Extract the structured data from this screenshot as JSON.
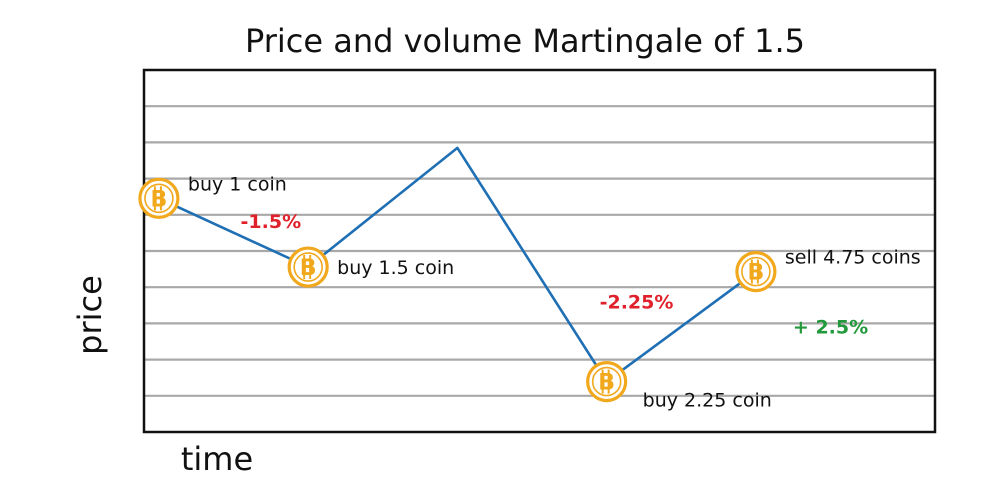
{
  "chart_data": {
    "type": "line",
    "title": "Price and volume  Martingale of 1.5",
    "xlabel": "time",
    "ylabel": "price",
    "grid": true,
    "gridlines": 9,
    "x": [
      0,
      1,
      2,
      3,
      4
    ],
    "y": [
      100,
      98.5,
      101.1,
      96.0,
      98.4
    ],
    "xlim": [
      -0.1,
      5.2
    ],
    "ylim": [
      94.9,
      102.8
    ],
    "series": [
      {
        "values": [
          100,
          98.5,
          101.1,
          96.0,
          98.4
        ]
      }
    ],
    "markers": [
      {
        "point": 0,
        "icon": "bitcoin-coin-icon",
        "label": "buy 1 coin",
        "label_pos": "right-above"
      },
      {
        "point": 1,
        "icon": "bitcoin-coin-icon",
        "label": "buy 1.5 coin",
        "label_pos": "right"
      },
      {
        "point": 3,
        "icon": "bitcoin-coin-icon",
        "label": "buy 2.25  coin",
        "label_pos": "right-below"
      },
      {
        "point": 4,
        "icon": "bitcoin-coin-icon",
        "label": "sell 4.75 coins",
        "label_pos": "right-above"
      }
    ],
    "annotations": [
      {
        "text": "-1.5%",
        "x": 0.75,
        "y": 99.35,
        "color": "#e0202a"
      },
      {
        "text": "-2.25%",
        "x": 3.2,
        "y": 97.6,
        "color": "#e0202a"
      },
      {
        "text": "+ 2.5%",
        "x": 4.5,
        "y": 97.05,
        "color": "#22993a"
      }
    ],
    "colors": {
      "line": "#1f6fb5",
      "grid": "#a8a8a8",
      "frame": "#111111",
      "coin": "#f2a81d",
      "coin_letter": "#f2a81d"
    }
  }
}
